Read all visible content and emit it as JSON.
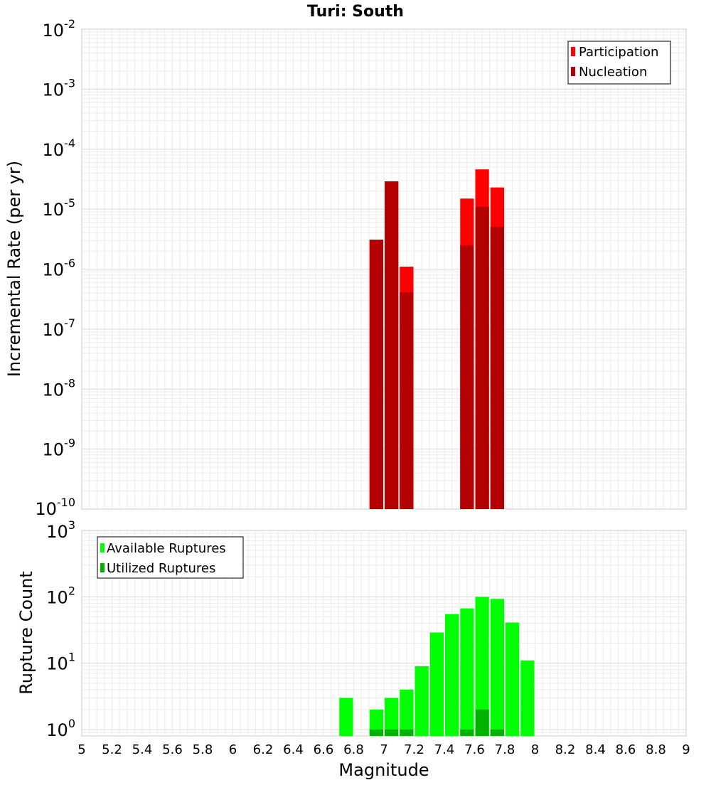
{
  "chart_data": [
    {
      "type": "bar",
      "title": "Turi: South",
      "ylabel": "Incremental Rate (per yr)",
      "xlabel": "",
      "yscale": "log",
      "ylim": [
        1e-10,
        0.01
      ],
      "xlim": [
        5,
        9
      ],
      "bar_width": 0.1,
      "y_ticks": [
        {
          "base": "10",
          "exp": "-10"
        },
        {
          "base": "10",
          "exp": "-9"
        },
        {
          "base": "10",
          "exp": "-8"
        },
        {
          "base": "10",
          "exp": "-7"
        },
        {
          "base": "10",
          "exp": "-6"
        },
        {
          "base": "10",
          "exp": "-5"
        },
        {
          "base": "10",
          "exp": "-4"
        },
        {
          "base": "10",
          "exp": "-3"
        },
        {
          "base": "10",
          "exp": "-2"
        }
      ],
      "legend_position": "top-right",
      "series": [
        {
          "name": "Participation",
          "color": "#ff0000",
          "x": [
            6.95,
            7.05,
            7.15,
            7.55,
            7.65,
            7.75
          ],
          "values": [
            3.1e-06,
            2.9e-05,
            1.1e-06,
            1.5e-05,
            4.6e-05,
            2.3e-05
          ]
        },
        {
          "name": "Nucleation",
          "color": "#b30000",
          "x": [
            6.95,
            7.05,
            7.15,
            7.55,
            7.65,
            7.75
          ],
          "values": [
            3.1e-06,
            2.9e-05,
            4.1e-07,
            2.5e-06,
            1.1e-05,
            5.1e-06
          ]
        }
      ]
    },
    {
      "type": "bar",
      "ylabel": "Rupture Count",
      "xlabel": "Magnitude",
      "yscale": "log",
      "ylim": [
        0.8,
        1000
      ],
      "xlim": [
        5,
        9
      ],
      "bar_width": 0.1,
      "x_ticks": [
        "5",
        "5.2",
        "5.4",
        "5.6",
        "5.8",
        "6",
        "6.2",
        "6.4",
        "6.6",
        "6.8",
        "7",
        "7.2",
        "7.4",
        "7.6",
        "7.8",
        "8",
        "8.2",
        "8.4",
        "8.6",
        "8.8",
        "9"
      ],
      "y_ticks": [
        {
          "base": "10",
          "exp": "0"
        },
        {
          "base": "10",
          "exp": "1"
        },
        {
          "base": "10",
          "exp": "2"
        },
        {
          "base": "10",
          "exp": "3"
        }
      ],
      "legend_position": "top-left",
      "series": [
        {
          "name": "Available Ruptures",
          "color": "#00ff00",
          "x": [
            6.75,
            6.95,
            7.05,
            7.15,
            7.25,
            7.35,
            7.45,
            7.55,
            7.65,
            7.75,
            7.85,
            7.95
          ],
          "values": [
            3,
            2,
            3,
            4,
            9,
            29,
            55,
            67,
            100,
            93,
            41,
            11
          ]
        },
        {
          "name": "Utilized Ruptures",
          "color": "#00b300",
          "x": [
            6.95,
            7.05,
            7.15,
            7.55,
            7.65,
            7.75
          ],
          "values": [
            1,
            1,
            1,
            1,
            2,
            1
          ]
        }
      ]
    }
  ]
}
